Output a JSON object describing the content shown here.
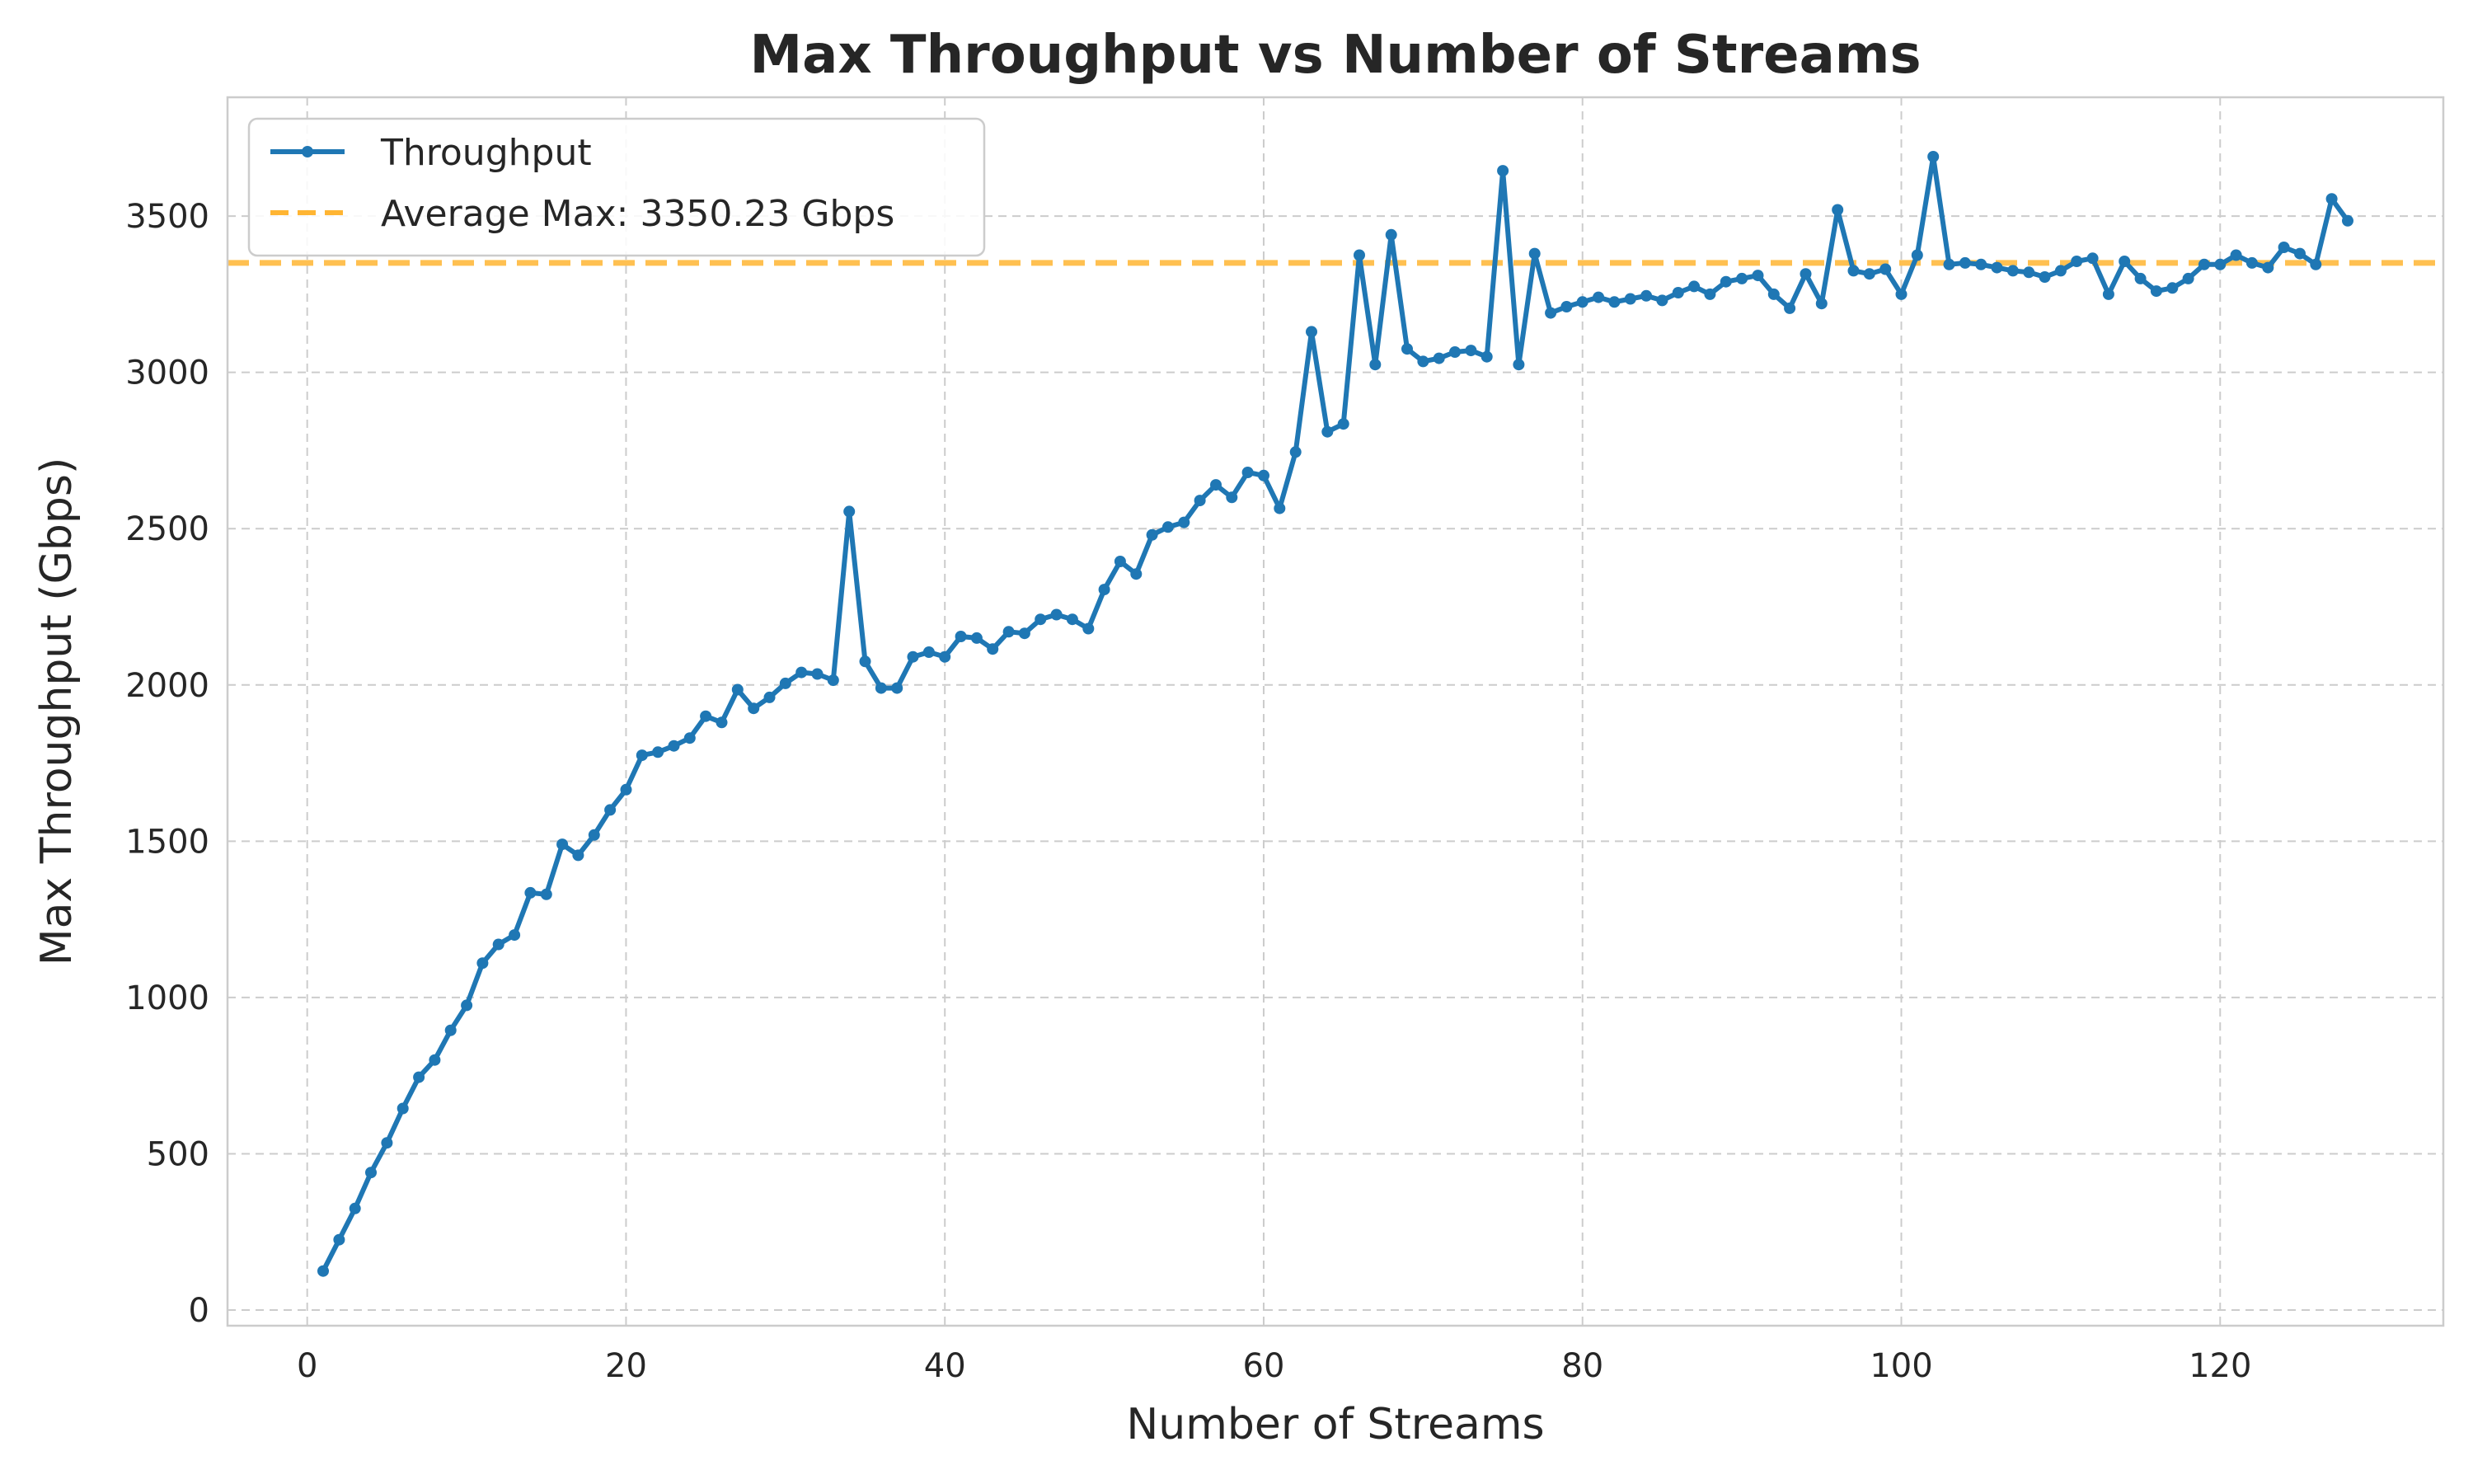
{
  "chart_data": {
    "type": "line",
    "title": "Max Throughput vs Number of Streams",
    "xlabel": "Number of Streams",
    "ylabel": "Max Throughput (Gbps)",
    "xlim": [
      -5,
      134
    ],
    "ylim": [
      -50,
      3880
    ],
    "xticks": [
      0,
      20,
      40,
      60,
      80,
      100,
      120
    ],
    "yticks": [
      0,
      500,
      1000,
      1500,
      2000,
      2500,
      3000,
      3500
    ],
    "grid": true,
    "legend_position": "upper-left",
    "series": [
      {
        "name": "Throughput",
        "color": "#1f77b4",
        "marker": "circle",
        "x": [
          1,
          2,
          3,
          4,
          5,
          6,
          7,
          8,
          9,
          10,
          11,
          12,
          13,
          14,
          15,
          16,
          17,
          18,
          19,
          20,
          21,
          22,
          23,
          24,
          25,
          26,
          27,
          28,
          29,
          30,
          31,
          32,
          33,
          34,
          35,
          36,
          37,
          38,
          39,
          40,
          41,
          42,
          43,
          44,
          45,
          46,
          47,
          48,
          49,
          50,
          51,
          52,
          53,
          54,
          55,
          56,
          57,
          58,
          59,
          60,
          61,
          62,
          63,
          64,
          65,
          66,
          67,
          68,
          69,
          70,
          71,
          72,
          73,
          74,
          75,
          76,
          77,
          78,
          79,
          80,
          81,
          82,
          83,
          84,
          85,
          86,
          87,
          88,
          89,
          90,
          91,
          92,
          93,
          94,
          95,
          96,
          97,
          98,
          99,
          100,
          101,
          102,
          103,
          104,
          105,
          106,
          107,
          108,
          109,
          110,
          111,
          112,
          113,
          114,
          115,
          116,
          117,
          118,
          119,
          120,
          121,
          122,
          123,
          124,
          125,
          126,
          127,
          128
        ],
        "y": [
          125,
          225,
          325,
          440,
          535,
          645,
          745,
          800,
          895,
          975,
          1110,
          1170,
          1200,
          1335,
          1330,
          1490,
          1455,
          1520,
          1600,
          1665,
          1775,
          1785,
          1805,
          1830,
          1900,
          1880,
          1985,
          1925,
          1960,
          2005,
          2040,
          2035,
          2015,
          2555,
          2075,
          1990,
          1990,
          2090,
          2105,
          2090,
          2155,
          2150,
          2115,
          2170,
          2165,
          2210,
          2225,
          2210,
          2180,
          2305,
          2395,
          2355,
          2480,
          2505,
          2520,
          2590,
          2640,
          2600,
          2680,
          2670,
          2565,
          2745,
          3130,
          2810,
          2835,
          3375,
          3025,
          3440,
          3075,
          3035,
          3045,
          3065,
          3070,
          3050,
          3645,
          3025,
          3380,
          3190,
          3210,
          3225,
          3240,
          3225,
          3235,
          3245,
          3230,
          3255,
          3275,
          3250,
          3290,
          3300,
          3310,
          3250,
          3205,
          3315,
          3220,
          3520,
          3325,
          3315,
          3330,
          3250,
          3375,
          3690,
          3345,
          3350,
          3345,
          3335,
          3325,
          3320,
          3305,
          3325,
          3355,
          3365,
          3250,
          3355,
          3300,
          3260,
          3270,
          3300,
          3345,
          3345,
          3375,
          3350,
          3335,
          3400,
          3380,
          3345,
          3555,
          3485
        ]
      }
    ],
    "reference_lines": [
      {
        "name": "Average Max: 3350.23 Gbps",
        "y": 3350.23,
        "color": "#ffb533",
        "style": "dashed"
      }
    ]
  }
}
